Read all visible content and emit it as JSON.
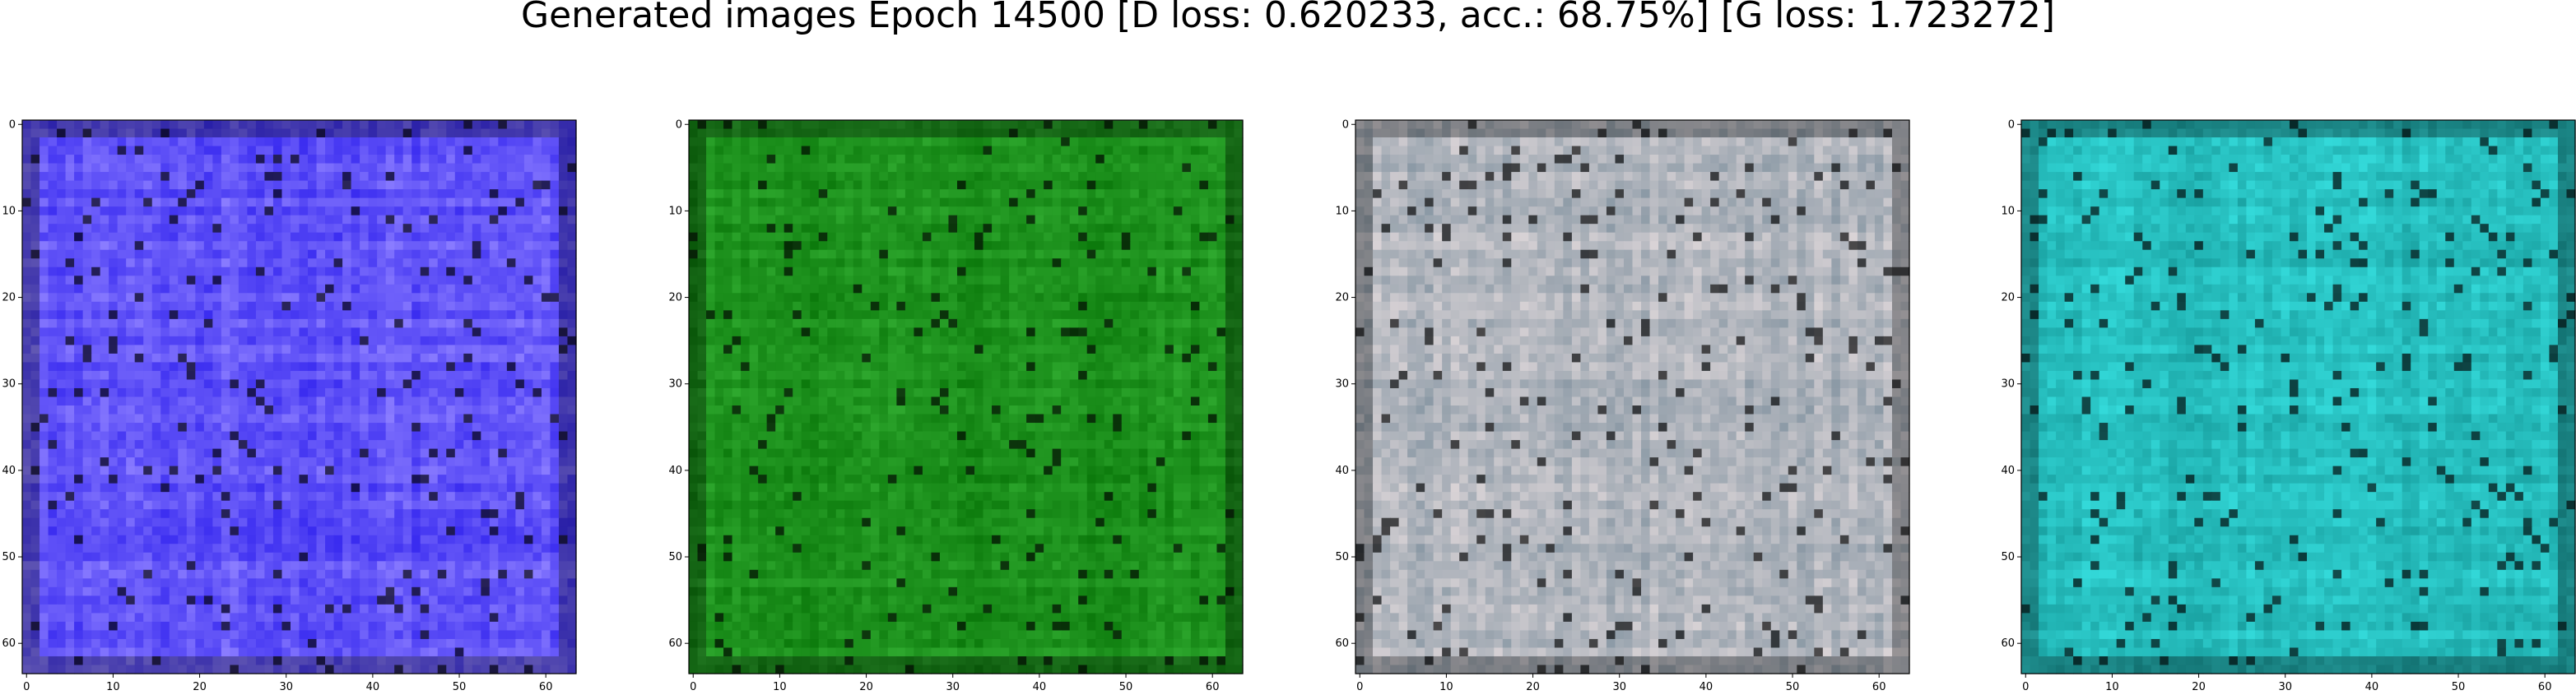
{
  "chart_data": {
    "type": "heatmap",
    "title": "Generated images Epoch 14500 [D loss: 0.620233, acc.: 68.75%] [G loss: 1.723272]",
    "panels": [
      {
        "name": "generated-image-1",
        "dominant_color": "#3a2cf0",
        "secondary_color": "#8a7cff",
        "xticks": [
          0,
          10,
          20,
          30,
          40,
          50,
          60
        ],
        "yticks": [
          0,
          10,
          20,
          30,
          40,
          50,
          60
        ],
        "xlim": [
          0,
          63
        ],
        "ylim": [
          63,
          0
        ]
      },
      {
        "name": "generated-image-2",
        "dominant_color": "#0c7a0c",
        "secondary_color": "#2ea82e",
        "xticks": [
          0,
          10,
          20,
          30,
          40,
          50,
          60
        ],
        "yticks": [
          0,
          10,
          20,
          30,
          40,
          50,
          60
        ],
        "xlim": [
          0,
          63
        ],
        "ylim": [
          63,
          0
        ]
      },
      {
        "name": "generated-image-3",
        "dominant_color": "#d9d3d6",
        "secondary_color": "#8c9aa6",
        "xticks": [
          0,
          10,
          20,
          30,
          40,
          50,
          60
        ],
        "yticks": [
          0,
          10,
          20,
          30,
          40,
          50,
          60
        ],
        "xlim": [
          0,
          63
        ],
        "ylim": [
          63,
          0
        ]
      },
      {
        "name": "generated-image-4",
        "dominant_color": "#1aa3a3",
        "secondary_color": "#33d9d9",
        "xticks": [
          0,
          10,
          20,
          30,
          40,
          50,
          60
        ],
        "yticks": [
          0,
          10,
          20,
          30,
          40,
          50,
          60
        ],
        "xlim": [
          0,
          63
        ],
        "ylim": [
          63,
          0
        ]
      }
    ]
  }
}
